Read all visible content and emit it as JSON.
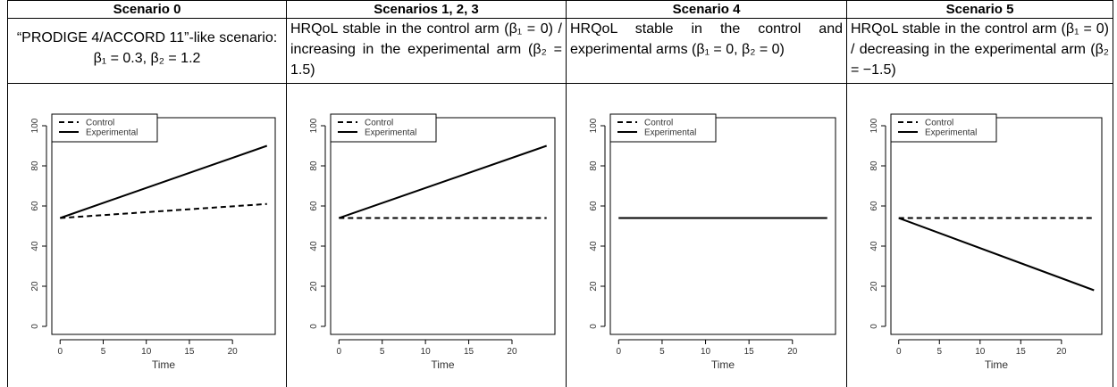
{
  "table": {
    "header": [
      "Scenario 0",
      "Scenarios 1, 2, 3",
      "Scenario 4",
      "Scenario 5"
    ],
    "descriptions": [
      "“PRODIGE 4/ACCORD 11”-like scenario: β₁ = 0.3, β₂ = 1.2",
      "HRQoL stable in the control arm (β₁ = 0) / increasing in the experimental arm (β₂ = 1.5)",
      "HRQoL stable in the control and experimental arms (β₁ = 0, β₂ = 0)",
      "HRQoL stable in the control arm (β₁ = 0) / decreasing in the experimental arm (β₂ = −1.5)"
    ],
    "charts": [
      {
        "type": "line",
        "xlabel": "Time",
        "x": [
          0,
          24
        ],
        "xlim": [
          -0.96,
          24.96
        ],
        "ylim": [
          -4,
          104
        ],
        "xticks": [
          0,
          5,
          10,
          15,
          20
        ],
        "yticks": [
          0,
          20,
          40,
          60,
          80,
          100
        ],
        "series": [
          {
            "name": "Control",
            "color": "#000000",
            "style": "dashed",
            "values": [
              54,
              61
            ]
          },
          {
            "name": "Experimental",
            "color": "#000000",
            "style": "solid",
            "values": [
              54,
              90
            ]
          }
        ]
      },
      {
        "type": "line",
        "xlabel": "Time",
        "x": [
          0,
          24
        ],
        "xlim": [
          -0.96,
          24.96
        ],
        "ylim": [
          -4,
          104
        ],
        "xticks": [
          0,
          5,
          10,
          15,
          20
        ],
        "yticks": [
          0,
          20,
          40,
          60,
          80,
          100
        ],
        "series": [
          {
            "name": "Control",
            "color": "#000000",
            "style": "dashed",
            "values": [
              54,
              54
            ]
          },
          {
            "name": "Experimental",
            "color": "#000000",
            "style": "solid",
            "values": [
              54,
              90
            ]
          }
        ]
      },
      {
        "type": "line",
        "xlabel": "Time",
        "x": [
          0,
          24
        ],
        "xlim": [
          -0.96,
          24.96
        ],
        "ylim": [
          -4,
          104
        ],
        "xticks": [
          0,
          5,
          10,
          15,
          20
        ],
        "yticks": [
          0,
          20,
          40,
          60,
          80,
          100
        ],
        "series": [
          {
            "name": "Control",
            "color": "#000000",
            "style": "dashed",
            "values": [
              54,
              54
            ]
          },
          {
            "name": "Experimental",
            "color": "#000000",
            "style": "solid",
            "values": [
              54,
              54
            ]
          }
        ]
      },
      {
        "type": "line",
        "xlabel": "Time",
        "x": [
          0,
          24
        ],
        "xlim": [
          -0.96,
          24.96
        ],
        "ylim": [
          -4,
          104
        ],
        "xticks": [
          0,
          5,
          10,
          15,
          20
        ],
        "yticks": [
          0,
          20,
          40,
          60,
          80,
          100
        ],
        "series": [
          {
            "name": "Control",
            "color": "#000000",
            "style": "dashed",
            "values": [
              54,
              54
            ]
          },
          {
            "name": "Experimental",
            "color": "#000000",
            "style": "solid",
            "values": [
              54,
              18
            ]
          }
        ]
      }
    ]
  }
}
